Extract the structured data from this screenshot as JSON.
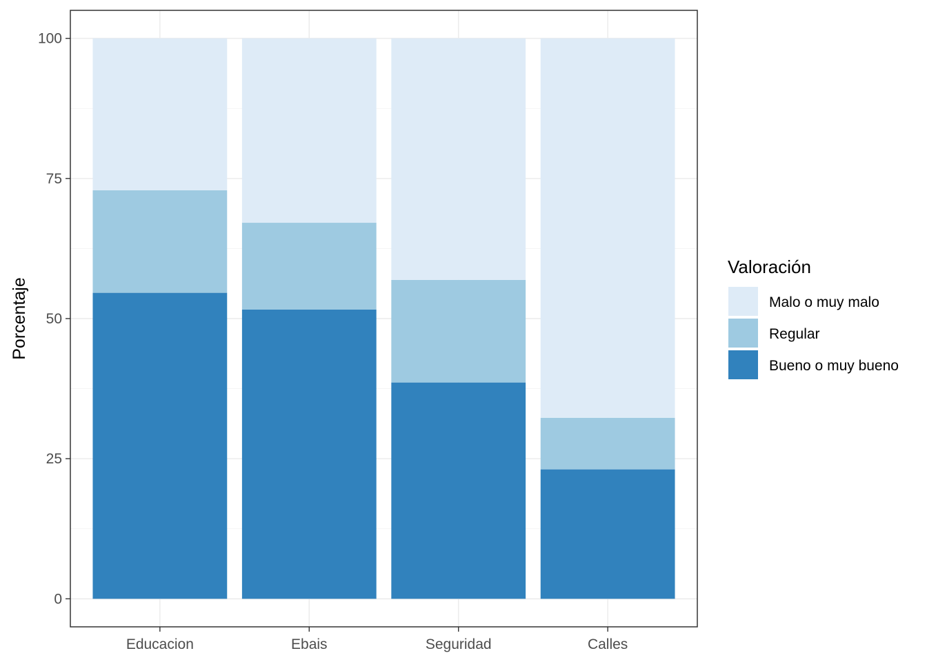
{
  "chart_data": {
    "type": "bar",
    "stacked": true,
    "categories": [
      "Educacion",
      "Ebais",
      "Seguridad",
      "Calles"
    ],
    "series": [
      {
        "name": "Bueno o muy bueno",
        "color": "#3182bd",
        "values": [
          54.6,
          51.6,
          38.6,
          23.1
        ]
      },
      {
        "name": "Regular",
        "color": "#9ecae1",
        "values": [
          18.3,
          15.5,
          18.3,
          9.2
        ]
      },
      {
        "name": "Malo o muy malo",
        "color": "#deebf7",
        "values": [
          27.1,
          32.9,
          43.1,
          67.7
        ]
      }
    ],
    "xlabel": "",
    "ylabel": "Porcentaje",
    "ylim": [
      -5,
      105
    ],
    "yticks": [
      0,
      25,
      50,
      75,
      100
    ],
    "grid": true,
    "legend": {
      "title": "Valoración",
      "placement": "right",
      "order": [
        "Malo o muy malo",
        "Regular",
        "Bueno o muy bueno"
      ]
    }
  }
}
